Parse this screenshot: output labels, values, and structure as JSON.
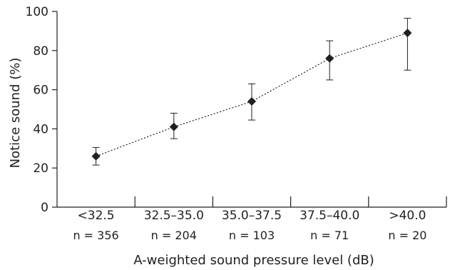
{
  "chart_data": {
    "type": "line",
    "title": "",
    "xlabel": "A-weighted sound pressure level (dB)",
    "ylabel": "Notice sound (%)",
    "ylim": [
      0,
      100
    ],
    "yticks": [
      "0",
      "20",
      "40",
      "60",
      "80",
      "100"
    ],
    "categories": [
      "<32.5",
      "32.5–35.0",
      "35.0–37.5",
      "37.5–40.0",
      ">40.0"
    ],
    "sample_sizes": [
      "n = 356",
      "n = 204",
      "n = 103",
      "n = 71",
      "n = 20"
    ],
    "series": [
      {
        "values": [
          26,
          41,
          54,
          76,
          89
        ],
        "error_low": [
          21.5,
          35,
          44.5,
          65,
          70
        ],
        "error_high": [
          30.5,
          48,
          63,
          85,
          96.5
        ],
        "marker": "diamond",
        "line_style": "dotted",
        "color": "#231f20"
      }
    ],
    "grid": false,
    "legend": "none"
  }
}
